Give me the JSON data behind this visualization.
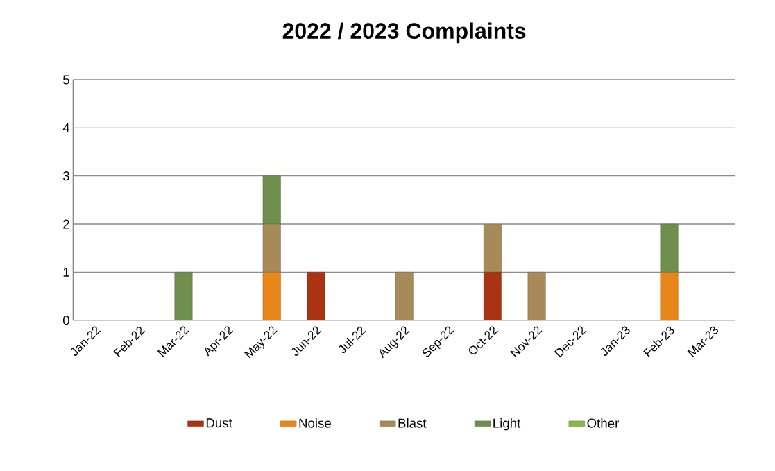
{
  "chart_data": {
    "type": "bar",
    "title": "2022 / 2023 Complaints",
    "categories": [
      "Jan-22",
      "Feb-22",
      "Mar-22",
      "Apr-22",
      "May-22",
      "Jun-22",
      "Jul-22",
      "Aug-22",
      "Sep-22",
      "Oct-22",
      "Nov-22",
      "Dec-22",
      "Jan-23",
      "Feb-23",
      "Mar-23"
    ],
    "stacked": true,
    "series": [
      {
        "name": "Dust",
        "color": "#a93313",
        "values": [
          0,
          0,
          0,
          0,
          0,
          1,
          0,
          0,
          0,
          1,
          0,
          0,
          0,
          0,
          0
        ]
      },
      {
        "name": "Noise",
        "color": "#e8861a",
        "values": [
          0,
          0,
          0,
          0,
          1,
          0,
          0,
          0,
          0,
          0,
          0,
          0,
          0,
          1,
          0
        ]
      },
      {
        "name": "Blast",
        "color": "#a88a5a",
        "values": [
          0,
          0,
          0,
          0,
          1,
          0,
          0,
          1,
          0,
          1,
          1,
          0,
          0,
          0,
          0
        ]
      },
      {
        "name": "Light",
        "color": "#6f8f4e",
        "values": [
          0,
          0,
          1,
          0,
          1,
          0,
          0,
          0,
          0,
          0,
          0,
          0,
          0,
          1,
          0
        ]
      },
      {
        "name": "Other",
        "color": "#8db54a",
        "values": [
          0,
          0,
          0,
          0,
          0,
          0,
          0,
          0,
          0,
          0,
          0,
          0,
          0,
          0,
          0
        ]
      }
    ],
    "ylim": [
      0,
      5
    ],
    "yticks": [
      0,
      1,
      2,
      3,
      4,
      5
    ],
    "grid": "y",
    "legend": "bottom"
  }
}
